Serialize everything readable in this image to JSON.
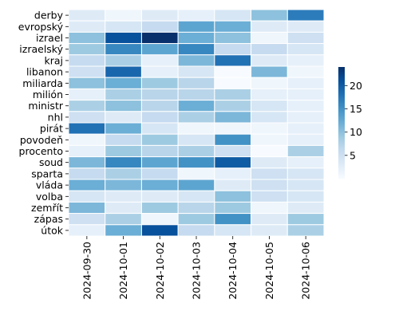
{
  "chart_data": {
    "type": "heatmap",
    "title": "",
    "xlabel": "",
    "ylabel": "",
    "rows": [
      "derby",
      "evropský",
      "izrael",
      "izraelský",
      "kraj",
      "libanon",
      "miliarda",
      "milión",
      "ministr",
      "nhl",
      "pirát",
      "povodeň",
      "procento",
      "soud",
      "sparta",
      "vláda",
      "volba",
      "zemřít",
      "zápas",
      "útok"
    ],
    "columns": [
      "2024-09-30",
      "2024-10-01",
      "2024-10-02",
      "2024-10-03",
      "2024-10-04",
      "2024-10-05",
      "2024-10-06"
    ],
    "values": [
      [
        3,
        1,
        3,
        2,
        4,
        10,
        17
      ],
      [
        3,
        4,
        6,
        13,
        12,
        3,
        3
      ],
      [
        10,
        21,
        24,
        12,
        10,
        1,
        5
      ],
      [
        9,
        16,
        13,
        16,
        6,
        6,
        4
      ],
      [
        6,
        8,
        2,
        11,
        18,
        3,
        2
      ],
      [
        5,
        19,
        2,
        4,
        0,
        11,
        1
      ],
      [
        10,
        12,
        9,
        7,
        0,
        1,
        2
      ],
      [
        2,
        8,
        7,
        7,
        8,
        2,
        2
      ],
      [
        8,
        10,
        7,
        12,
        8,
        4,
        2
      ],
      [
        5,
        3,
        6,
        8,
        11,
        4,
        2
      ],
      [
        18,
        12,
        4,
        1,
        1,
        1,
        2
      ],
      [
        1,
        6,
        9,
        4,
        15,
        1,
        2
      ],
      [
        2,
        9,
        7,
        8,
        5,
        0,
        8
      ],
      [
        11,
        16,
        13,
        15,
        20,
        3,
        2
      ],
      [
        6,
        8,
        6,
        1,
        2,
        5,
        4
      ],
      [
        12,
        11,
        12,
        13,
        3,
        5,
        4
      ],
      [
        4,
        3,
        3,
        4,
        10,
        5,
        4
      ],
      [
        11,
        3,
        9,
        7,
        9,
        1,
        3
      ],
      [
        5,
        8,
        1,
        9,
        15,
        3,
        9
      ],
      [
        2,
        12,
        21,
        6,
        4,
        3,
        8
      ]
    ],
    "colorbar": {
      "ticks": [
        5,
        10,
        15,
        20
      ],
      "range": [
        0,
        24
      ],
      "colormap": "Blues"
    }
  }
}
